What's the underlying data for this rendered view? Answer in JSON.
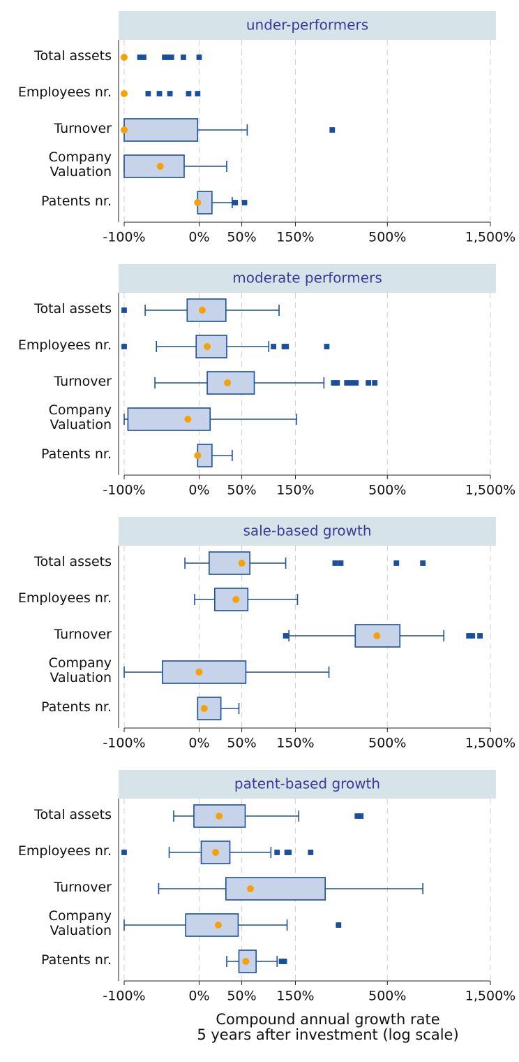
{
  "chart_data": [
    {
      "type": "box",
      "title": "under-performers",
      "categories": [
        "Total assets",
        "Employees nr.",
        "Turnover",
        "Company\nValuation",
        "Patents nr."
      ],
      "xlim": [
        -100,
        1500
      ],
      "xscale": "log",
      "grid": true,
      "xticks": [
        {
          "value": -100,
          "label": "-100%"
        },
        {
          "value": 0,
          "label": "0%"
        },
        {
          "value": 50,
          "label": "50%"
        },
        {
          "value": 150,
          "label": "150%"
        },
        {
          "value": 500,
          "label": "500%"
        },
        {
          "value": 1500,
          "label": "1,500%"
        }
      ],
      "box_color": "#c6d3e8",
      "line_color": "#1a4f9c",
      "mean_color": "#f5a20a",
      "header_color": "#d6e4ea",
      "title_color": "#3a3a9a",
      "boxes": [
        {
          "mean": -100,
          "outliers": [
            -79,
            -74,
            -46,
            -42,
            -37,
            -21,
            0
          ]
        },
        {
          "mean": -100,
          "outliers": [
            -68,
            -53,
            -39,
            -14,
            -2
          ]
        },
        {
          "whisker_low": -100,
          "q1": -100,
          "q3": -2,
          "whisker_high": 58,
          "mean": -100,
          "outliers": [
            255
          ]
        },
        {
          "whisker_low": -100,
          "q1": -100,
          "q3": -20,
          "whisker_high": 30,
          "mean": -52,
          "outliers": []
        },
        {
          "whisker_low": -2,
          "q1": -2,
          "q3": 13,
          "whisker_high": 37,
          "mean": -2,
          "outliers": [
            41,
            54
          ]
        }
      ]
    },
    {
      "type": "box",
      "title": "moderate performers",
      "categories": [
        "Total assets",
        "Employees nr.",
        "Turnover",
        "Company\nValuation",
        "Patents nr."
      ],
      "xlim": [
        -100,
        1500
      ],
      "xscale": "log",
      "grid": true,
      "xticks": [
        {
          "value": -100,
          "label": "-100%"
        },
        {
          "value": 0,
          "label": "0%"
        },
        {
          "value": 50,
          "label": "50%"
        },
        {
          "value": 150,
          "label": "150%"
        },
        {
          "value": 500,
          "label": "500%"
        },
        {
          "value": 1500,
          "label": "1,500%"
        }
      ],
      "box_color": "#c6d3e8",
      "line_color": "#1a4f9c",
      "mean_color": "#f5a20a",
      "header_color": "#d6e4ea",
      "title_color": "#3a3a9a",
      "boxes": [
        {
          "whisker_low": -72,
          "q1": -16,
          "q3": 29,
          "whisker_high": 114,
          "mean": 3,
          "outliers": [
            -100
          ]
        },
        {
          "whisker_low": -57,
          "q1": -4,
          "q3": 30,
          "whisker_high": 94,
          "mean": 8,
          "outliers": [
            -100,
            103,
            125,
            129,
            237
          ]
        },
        {
          "whisker_low": -59,
          "q1": 8,
          "q3": 69,
          "whisker_high": 228,
          "mean": 31,
          "outliers": [
            260,
            272,
            308,
            325,
            345,
            401,
            432
          ]
        },
        {
          "whisker_low": -100,
          "q1": -95,
          "q3": 11,
          "whisker_high": 153,
          "mean": -15,
          "outliers": []
        },
        {
          "whisker_low": -2,
          "q1": -2,
          "q3": 13,
          "whisker_high": 37,
          "mean": -2,
          "outliers": []
        }
      ]
    },
    {
      "type": "box",
      "title": "sale-based growth",
      "categories": [
        "Total assets",
        "Employees nr.",
        "Turnover",
        "Company\nValuation",
        "Patents nr."
      ],
      "xlim": [
        -100,
        1500
      ],
      "xscale": "log",
      "grid": true,
      "xticks": [
        {
          "value": -100,
          "label": "-100%"
        },
        {
          "value": 0,
          "label": "0%"
        },
        {
          "value": 50,
          "label": "50%"
        },
        {
          "value": 150,
          "label": "150%"
        },
        {
          "value": 500,
          "label": "500%"
        },
        {
          "value": 1500,
          "label": "1,500%"
        }
      ],
      "box_color": "#c6d3e8",
      "line_color": "#1a4f9c",
      "mean_color": "#f5a20a",
      "header_color": "#d6e4ea",
      "title_color": "#3a3a9a",
      "boxes": [
        {
          "whisker_low": -19,
          "q1": 10,
          "q3": 62,
          "whisker_high": 128,
          "mean": 50,
          "outliers": [
            265,
            285,
            554,
            741
          ]
        },
        {
          "whisker_low": -6,
          "q1": 16,
          "q3": 59,
          "whisker_high": 155,
          "mean": 42,
          "outliers": []
        },
        {
          "whisker_low": 135,
          "q1": 342,
          "q3": 576,
          "whisker_high": 927,
          "mean": 443,
          "outliers": [
            128,
            1204,
            1248,
            1349
          ]
        },
        {
          "whisker_low": -100,
          "q1": -49,
          "q3": 56,
          "whisker_high": 244,
          "mean": 0,
          "outliers": []
        },
        {
          "whisker_low": -2,
          "q1": -2,
          "q3": 23,
          "whisker_high": 46,
          "mean": 5,
          "outliers": []
        }
      ]
    },
    {
      "type": "box",
      "title": "patent-based growth",
      "categories": [
        "Total assets",
        "Employees nr.",
        "Turnover",
        "Company\nValuation",
        "Patents nr."
      ],
      "xlim": [
        -100,
        1500
      ],
      "xscale": "log",
      "grid": true,
      "xticks": [
        {
          "value": -100,
          "label": "-100%"
        },
        {
          "value": 0,
          "label": "0%"
        },
        {
          "value": 50,
          "label": "50%"
        },
        {
          "value": 150,
          "label": "150%"
        },
        {
          "value": 500,
          "label": "500%"
        },
        {
          "value": 1500,
          "label": "1,500%"
        }
      ],
      "box_color": "#c6d3e8",
      "line_color": "#1a4f9c",
      "mean_color": "#f5a20a",
      "header_color": "#d6e4ea",
      "title_color": "#3a3a9a",
      "xlabel": "Compound annual growth rate\n5 years after investment (log scale)",
      "boxes": [
        {
          "whisker_low": -34,
          "q1": -7,
          "q3": 55,
          "whisker_high": 158,
          "mean": 21,
          "outliers": [
            351,
            366
          ]
        },
        {
          "whisker_low": -40,
          "q1": 2,
          "q3": 34,
          "whisker_high": 98,
          "mean": 17,
          "outliers": [
            -100,
            110,
            131,
            135,
            189
          ]
        },
        {
          "whisker_low": -54,
          "q1": 29,
          "q3": 232,
          "whisker_high": 741,
          "mean": 63,
          "outliers": []
        },
        {
          "whisker_low": -100,
          "q1": -18,
          "q3": 45,
          "whisker_high": 131,
          "mean": 20,
          "outliers": [
            277
          ]
        },
        {
          "whisker_low": 30,
          "q1": 46,
          "q3": 72,
          "whisker_high": 110,
          "mean": 56,
          "outliers": [
            119,
            125
          ]
        }
      ]
    }
  ]
}
